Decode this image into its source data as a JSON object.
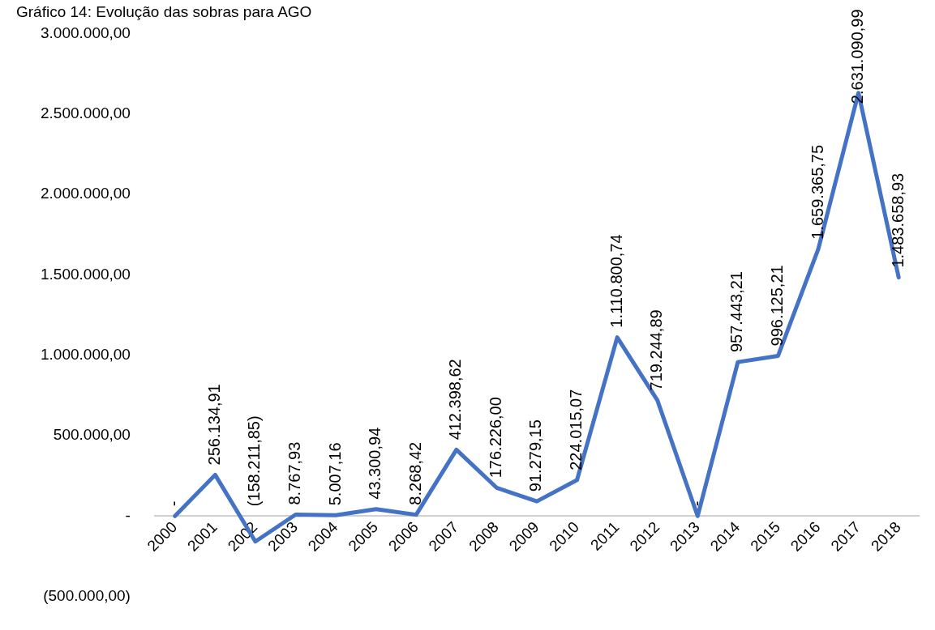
{
  "chart_data": {
    "type": "line",
    "title": "Gráfico 14: Evolução das sobras para AGO",
    "categories": [
      "2000",
      "2001",
      "2002",
      "2003",
      "2004",
      "2005",
      "2006",
      "2007",
      "2008",
      "2009",
      "2010",
      "2011",
      "2012",
      "2013",
      "2014",
      "2015",
      "2016",
      "2017",
      "2018"
    ],
    "series": [
      {
        "color": "#4472c4",
        "values": [
          0,
          256134.91,
          -158211.85,
          8767.93,
          5007.16,
          43300.94,
          8268.42,
          412398.62,
          176226.0,
          91279.15,
          224015.07,
          1110800.74,
          719244.89,
          0,
          957443.21,
          996125.21,
          1659365.75,
          2631090.99,
          1483658.93
        ],
        "value_labels": [
          "-",
          "256.134,91",
          "(158.211,85)",
          "8.767,93",
          "5.007,16",
          "43.300,94",
          "8.268,42",
          "412.398,62",
          "176.226,00",
          "91.279,15",
          "224.015,07",
          "1.110.800,74",
          "719.244,89",
          "-",
          "957.443,21",
          "996.125,21",
          "1.659.365,75",
          "2.631.090,99",
          "1.483.658,93"
        ]
      }
    ],
    "ylim": [
      -500000,
      3000000
    ],
    "yticks": [
      {
        "value": -500000,
        "label": "(500.000,00)"
      },
      {
        "value": 0,
        "label": "-"
      },
      {
        "value": 500000,
        "label": "500.000,00"
      },
      {
        "value": 1000000,
        "label": "1.000.000,00"
      },
      {
        "value": 1500000,
        "label": "1.500.000,00"
      },
      {
        "value": 2000000,
        "label": "2.000.000,00"
      },
      {
        "value": 2500000,
        "label": "2.500.000,00"
      },
      {
        "value": 3000000,
        "label": "3.000.000,00"
      }
    ],
    "grid": false,
    "legend": false,
    "marker": "none",
    "line_style": "solid"
  }
}
